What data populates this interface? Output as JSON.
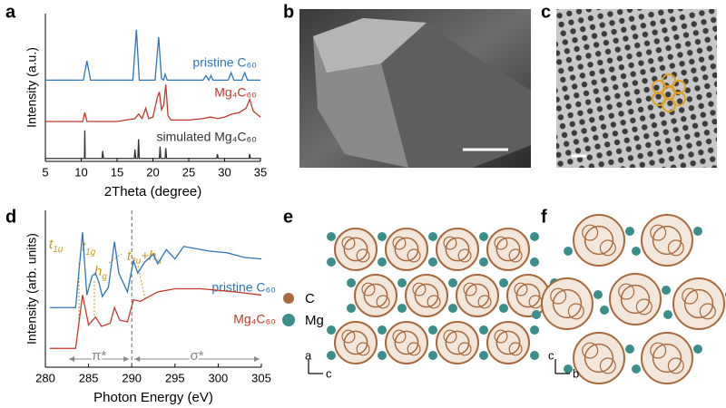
{
  "panel_labels": [
    "a",
    "b",
    "c",
    "d",
    "e",
    "f"
  ],
  "chart_data": [
    {
      "type": "line",
      "xlabel": "2Theta (degree)",
      "ylabel": "Intensity (a.u.)",
      "xlim": [
        5,
        35
      ],
      "xticks": [
        5,
        10,
        15,
        20,
        25,
        30,
        35
      ],
      "ylim": [
        0,
        10
      ],
      "series": [
        {
          "name": "pristine C₆₀",
          "color": "#2e75b6",
          "x": [
            5,
            10.3,
            10.8,
            11.3,
            17.2,
            17.7,
            18.1,
            20.3,
            20.8,
            21.2,
            21.5,
            21.7,
            22,
            27,
            27.4,
            27.8,
            28.1,
            28.4,
            30.5,
            30.9,
            31.3,
            32.4,
            32.8,
            33.2,
            35
          ],
          "values": [
            5.5,
            5.5,
            6.8,
            5.5,
            5.5,
            8.9,
            5.5,
            5.5,
            8.4,
            5.6,
            5.5,
            5.9,
            5.5,
            5.5,
            5.8,
            5.5,
            5.8,
            5.5,
            5.5,
            6.0,
            5.5,
            5.5,
            6.0,
            5.5,
            5.5
          ]
        },
        {
          "name": "Mg₄C₆₀",
          "color": "#c0392b",
          "x": [
            5,
            10.2,
            10.5,
            10.8,
            15,
            17.5,
            18,
            18.5,
            19,
            19.4,
            20,
            20.6,
            20.9,
            21.2,
            21.5,
            21.8,
            22.1,
            22.5,
            25,
            27,
            28,
            29,
            30,
            31,
            32,
            33,
            33.5,
            34,
            35
          ],
          "values": [
            2.7,
            2.7,
            3.3,
            2.7,
            2.7,
            2.9,
            3.2,
            2.9,
            3.6,
            2.9,
            3.0,
            4.3,
            4.7,
            3.5,
            3.8,
            5.2,
            3.1,
            2.8,
            2.8,
            2.9,
            3.0,
            2.9,
            3.0,
            3.2,
            3.3,
            3.6,
            4.2,
            3.4,
            3.0
          ]
        },
        {
          "name": "simulated Mg₄C₆₀",
          "color": "#333333",
          "x": [
            5,
            10.45,
            10.5,
            10.55,
            12.9,
            13,
            13.1,
            17.4,
            17.5,
            17.6,
            17.9,
            18,
            18.1,
            20.9,
            21,
            21.1,
            21.7,
            21.8,
            21.9,
            24,
            28.9,
            29,
            29.1,
            33.4,
            33.5,
            33.6,
            35
          ],
          "values": [
            0.2,
            0.2,
            2.1,
            0.2,
            0.2,
            0.7,
            0.2,
            0.2,
            0.8,
            0.2,
            0.2,
            1.5,
            0.2,
            0.2,
            1.0,
            0.2,
            0.2,
            0.9,
            0.2,
            0.2,
            0.2,
            0.5,
            0.2,
            0.2,
            0.5,
            0.2,
            0.2
          ]
        }
      ]
    },
    {
      "type": "line",
      "xlabel": "Photon Energy (eV)",
      "ylabel": "Intensity (arb. units)",
      "xlim": [
        280,
        305
      ],
      "xticks": [
        280,
        285,
        290,
        295,
        300,
        305
      ],
      "ylim": [
        0,
        10
      ],
      "divider": 290,
      "region_labels": [
        "π*",
        "σ*"
      ],
      "annotations": [
        {
          "segments": [
            {
              "text": "t"
            },
            {
              "text": "1u",
              "sub": true
            }
          ]
        },
        {
          "segments": [
            {
              "text": "t"
            },
            {
              "text": "1g",
              "sub": true
            }
          ]
        },
        {
          "segments": [
            {
              "text": "h"
            },
            {
              "text": "g",
              "sub": true
            }
          ]
        },
        {
          "segments": [
            {
              "text": "t"
            },
            {
              "text": "2u",
              "sub": true
            },
            {
              "text": "+h"
            },
            {
              "text": "u",
              "sub": true
            }
          ]
        }
      ],
      "series": [
        {
          "name": "pristine C₆₀",
          "color": "#2e75b6",
          "x": [
            280.5,
            283.5,
            284.3,
            284.8,
            285.4,
            285.8,
            286.2,
            286.6,
            287.3,
            288,
            288.5,
            289.5,
            290.2,
            290.7,
            291.5,
            292.5,
            293,
            294,
            295,
            296,
            297,
            299,
            301,
            303,
            305
          ],
          "values": [
            3.8,
            3.8,
            8.6,
            4.6,
            5.8,
            6.0,
            5.4,
            4.5,
            5.1,
            8.0,
            6.0,
            4.8,
            6.8,
            6.0,
            6.7,
            7.2,
            6.6,
            7.5,
            6.9,
            7.7,
            7.6,
            7.4,
            7.3,
            7.0,
            6.9
          ]
        },
        {
          "name": "Mg₄C₆₀",
          "color": "#c0392b",
          "x": [
            280.5,
            283.5,
            284.3,
            285,
            285.8,
            286.5,
            287.5,
            288,
            288.6,
            289.5,
            290.2,
            291,
            293,
            295,
            298,
            302,
            305
          ],
          "values": [
            1.2,
            1.2,
            4.6,
            2.7,
            3.2,
            2.6,
            2.8,
            3.8,
            3.0,
            2.9,
            4.3,
            4.2,
            4.8,
            5.0,
            5.0,
            4.8,
            4.6
          ]
        }
      ]
    }
  ],
  "structure_e": {
    "legend": [
      "C",
      "Mg"
    ],
    "axes": [
      "a",
      "c"
    ]
  },
  "structure_f": {
    "axes": [
      "c",
      "b"
    ]
  }
}
